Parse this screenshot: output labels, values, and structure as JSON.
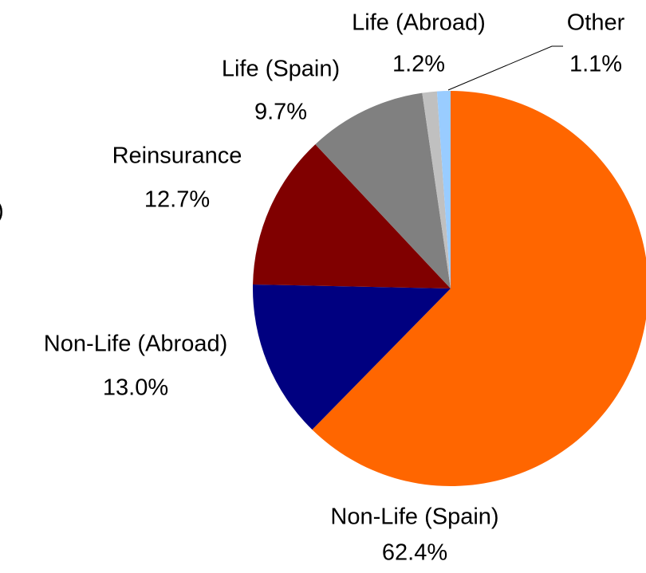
{
  "chart_data": {
    "type": "pie",
    "title": ")",
    "categories": [
      "Non-Life (Spain)",
      "Non-Life (Abroad)",
      "Reinsurance",
      "Life (Spain)",
      "Life (Abroad)",
      "Other"
    ],
    "values": [
      62.4,
      13.0,
      12.7,
      9.7,
      1.2,
      1.1
    ],
    "value_labels": [
      "62.4%",
      "13.0%",
      "12.7%",
      "9.7%",
      "1.2%",
      "1.1%"
    ],
    "colors": [
      "#ff6600",
      "#000080",
      "#800000",
      "#808080",
      "#c0c0c0",
      "#99ccff"
    ]
  }
}
